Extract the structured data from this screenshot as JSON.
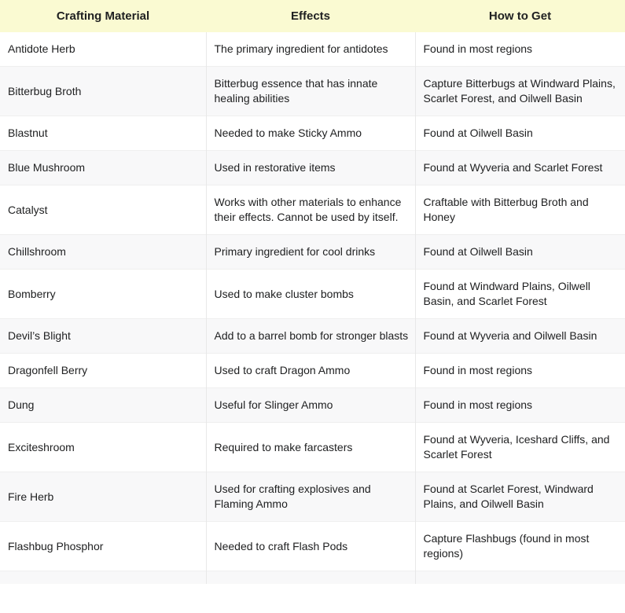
{
  "table": {
    "headers": [
      "Crafting Material",
      "Effects",
      "How to Get"
    ],
    "rows": [
      {
        "material": "Antidote Herb",
        "effects": "The primary ingredient for antidotes",
        "how_to_get": "Found in most regions"
      },
      {
        "material": "Bitterbug Broth",
        "effects": "Bitterbug essence that has innate healing abilities",
        "how_to_get": "Capture Bitterbugs at Windward Plains, Scarlet Forest, and Oilwell Basin"
      },
      {
        "material": "Blastnut",
        "effects": "Needed to make Sticky Ammo",
        "how_to_get": "Found at Oilwell Basin"
      },
      {
        "material": "Blue Mushroom",
        "effects": "Used in restorative items",
        "how_to_get": "Found at Wyveria and Scarlet Forest"
      },
      {
        "material": "Catalyst",
        "effects": "Works with other materials to enhance their effects. Cannot be used by itself.",
        "how_to_get": "Craftable with Bitterbug Broth and Honey"
      },
      {
        "material": "Chillshroom",
        "effects": "Primary ingredient for cool drinks",
        "how_to_get": "Found at Oilwell Basin"
      },
      {
        "material": "Bomberry",
        "effects": "Used to make cluster bombs",
        "how_to_get": "Found at Windward Plains, Oilwell Basin, and Scarlet Forest"
      },
      {
        "material": "Devil’s Blight",
        "effects": "Add to a barrel bomb for stronger blasts",
        "how_to_get": "Found at Wyveria and Oilwell Basin"
      },
      {
        "material": "Dragonfell Berry",
        "effects": "Used to craft Dragon Ammo",
        "how_to_get": "Found in most regions"
      },
      {
        "material": "Dung",
        "effects": "Useful for Slinger Ammo",
        "how_to_get": "Found in most regions"
      },
      {
        "material": "Exciteshroom",
        "effects": "Required to make farcasters",
        "how_to_get": "Found at Wyveria, Iceshard Cliffs, and Scarlet Forest"
      },
      {
        "material": "Fire Herb",
        "effects": "Used for crafting explosives and Flaming Ammo",
        "how_to_get": "Found at Scarlet Forest, Windward Plains, and Oilwell Basin"
      },
      {
        "material": "Flashbug Phosphor",
        "effects": "Needed to craft Flash Pods",
        "how_to_get": "Capture Flashbugs (found in most regions)"
      }
    ],
    "colors": {
      "header_bg": "#fafad2",
      "alt_row_bg": "#f8f8f9",
      "text_color": "#202122",
      "row_border": "#efefef",
      "column_border": "#e8e8e8"
    }
  }
}
